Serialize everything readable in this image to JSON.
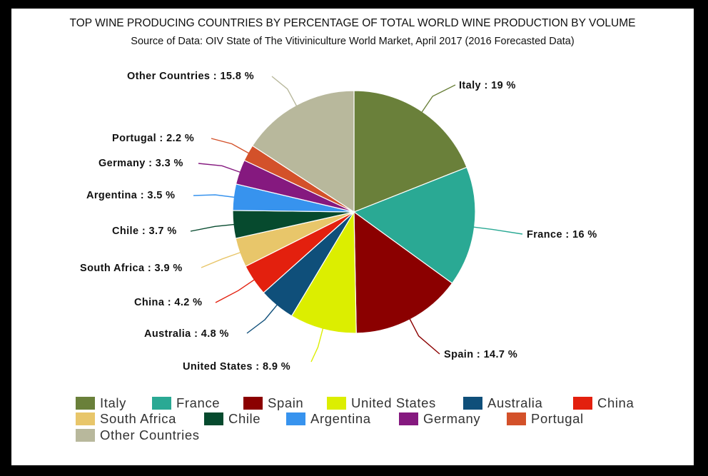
{
  "chart_data": {
    "type": "pie",
    "title": "TOP WINE PRODUCING COUNTRIES BY PERCENTAGE OF TOTAL WORLD WINE PRODUCTION BY VOLUME",
    "subtitle": "Source of Data: OIV State of The Vitiviniculture World Market, April 2017 (2016 Forecasted Data)",
    "legend_position": "bottom",
    "slices": [
      {
        "name": "Italy",
        "value": 19,
        "label": "Italy : 19 %",
        "color": "#6a803a"
      },
      {
        "name": "France",
        "value": 16,
        "label": "France : 16 %",
        "color": "#2aa994"
      },
      {
        "name": "Spain",
        "value": 14.7,
        "label": "Spain : 14.7 %",
        "color": "#8b0000"
      },
      {
        "name": "United States",
        "value": 8.9,
        "label": "United States : 8.9 %",
        "color": "#dcee00"
      },
      {
        "name": "Australia",
        "value": 4.8,
        "label": "Australia : 4.8 %",
        "color": "#0f4f7a"
      },
      {
        "name": "China",
        "value": 4.2,
        "label": "China : 4.2 %",
        "color": "#e3200e"
      },
      {
        "name": "South Africa",
        "value": 3.9,
        "label": "South Africa : 3.9 %",
        "color": "#e8c66a"
      },
      {
        "name": "Chile",
        "value": 3.7,
        "label": "Chile : 3.7 %",
        "color": "#064a2e"
      },
      {
        "name": "Argentina",
        "value": 3.5,
        "label": "Argentina : 3.5 %",
        "color": "#3793ee"
      },
      {
        "name": "Germany",
        "value": 3.3,
        "label": "Germany : 3.3 %",
        "color": "#85197f"
      },
      {
        "name": "Portugal",
        "value": 2.2,
        "label": "Portugal : 2.2 %",
        "color": "#d3512a"
      },
      {
        "name": "Other Countries",
        "value": 15.8,
        "label": "Other Countries : 15.8 %",
        "color": "#b8b89c"
      }
    ]
  }
}
